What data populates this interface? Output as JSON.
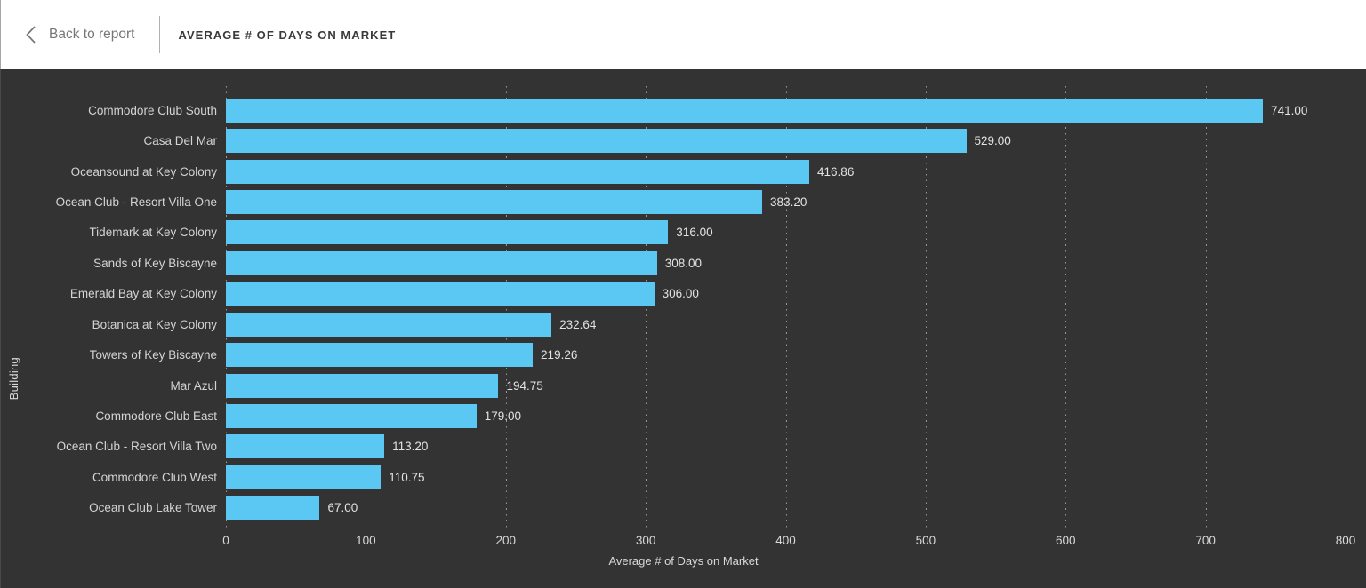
{
  "header": {
    "back_label": "Back to report",
    "title": "AVERAGE # OF DAYS ON MARKET"
  },
  "chart_data": {
    "type": "bar",
    "orientation": "horizontal",
    "categories": [
      "Commodore Club South",
      "Casa Del Mar",
      "Oceansound at Key Colony",
      "Ocean Club - Resort Villa One",
      "Tidemark at Key Colony",
      "Sands of Key Biscayne",
      "Emerald Bay at Key Colony",
      "Botanica at Key Colony",
      "Towers of Key Biscayne",
      "Mar Azul",
      "Commodore Club East",
      "Ocean Club - Resort Villa Two",
      "Commodore Club West",
      "Ocean Club Lake Tower"
    ],
    "values": [
      741.0,
      529.0,
      416.86,
      383.2,
      316.0,
      308.0,
      306.0,
      232.64,
      219.26,
      194.75,
      179.0,
      113.2,
      110.75,
      67.0
    ],
    "value_labels": [
      "741.00",
      "529.00",
      "416.86",
      "383.20",
      "316.00",
      "308.00",
      "306.00",
      "232.64",
      "219.26",
      "194.75",
      "179.00",
      "113.20",
      "110.75",
      "67.00"
    ],
    "xlabel": "Average # of Days on Market",
    "ylabel": "Building",
    "xlim": [
      0,
      800
    ],
    "xticks": [
      0,
      100,
      200,
      300,
      400,
      500,
      600,
      700,
      800
    ],
    "xtick_labels": [
      "0",
      "100",
      "200",
      "300",
      "400",
      "500",
      "600",
      "700",
      "800"
    ],
    "grid": "dotted-vertical",
    "legend": "none",
    "colors": {
      "bar": "#5bc8f3",
      "plot_background": "#333333",
      "header_background": "#ffffff",
      "text_light": "#d9d9d9",
      "gridline": "#969696"
    }
  }
}
